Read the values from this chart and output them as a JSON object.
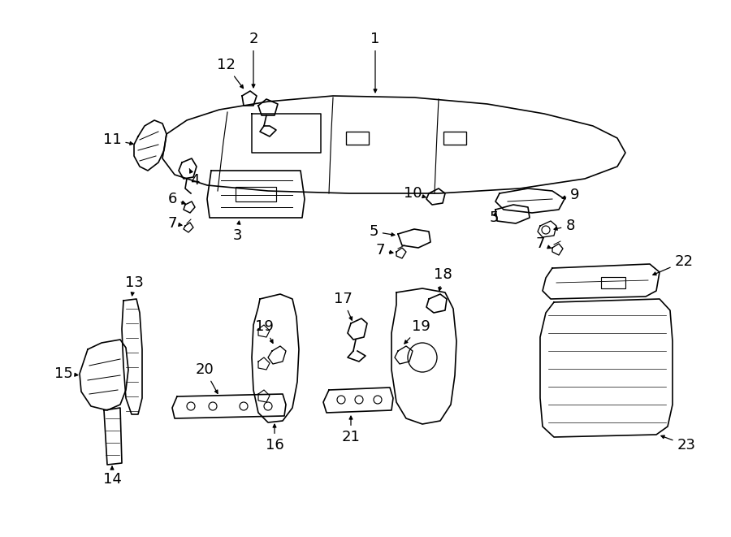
{
  "bg_color": "#ffffff",
  "line_color": "#000000",
  "text_color": "#000000",
  "figsize": [
    9.0,
    6.61
  ],
  "dpi": 100,
  "lw": 1.2
}
